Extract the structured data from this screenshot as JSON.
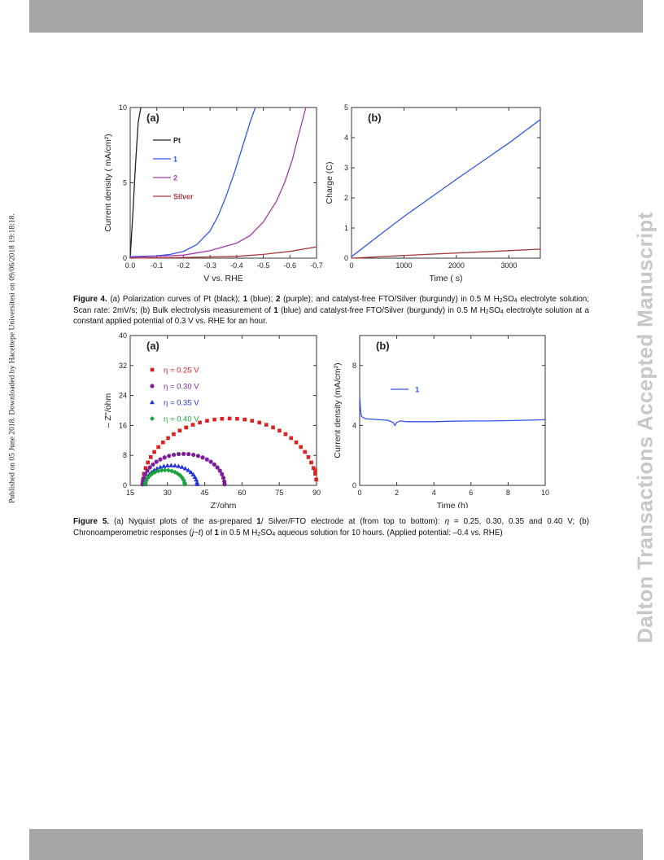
{
  "side_text_left": "Published on 05 June 2018. Downloaded by Hacettepe Universitesi on 09/06/2018 19:18:18.",
  "watermark": "Dalton Transactions Accepted Manuscript",
  "colors": {
    "black": "#222222",
    "blue": "#3355ee",
    "purple": "#a23aa8",
    "burgundy": "#a83a3a",
    "red": "#e02020",
    "violet": "#7a1e9a",
    "green": "#1aa33a"
  },
  "figure4": {
    "caption": {
      "label": "Figure 4.",
      "p1": " (a) Polarization curves of Pt (black); ",
      "c1": "1",
      "p2": " (blue); ",
      "c2": "2",
      "p3": " (purple); and catalyst-free FTO/Silver (burgundy) in 0.5 M H",
      "s1": "2",
      "p4": "SO",
      "s2": "4",
      "p5": " electrolyte solution; Scan rate: 2mV/s; (b) Bulk electrolysis measurement of ",
      "c3": "1",
      "p6": " (blue) and catalyst-free FTO/Silver (burgundy) in 0.5 M H",
      "s3": "2",
      "p7": "SO",
      "s4": "4",
      "p8": " electrolyte solution at a constant applied potential of 0.3 V vs. RHE for an hour."
    }
  },
  "figure5": {
    "caption": {
      "label": "Figure 5.",
      "p1": " (a) Nyquist plots of the as-prepared ",
      "c1": "1",
      "p2": "/ Silver/FTO electrode at (from top to bottom): ",
      "eta": "η",
      "p3": " = 0.25, 0.30, 0.35 and 0.40 V; (b) Chronoamperometric responses (",
      "j": "j",
      "tilde": "~",
      "t": "t",
      "p4": ") of ",
      "c2": "1",
      "p5": " in 0.5 M H",
      "s1": "2",
      "p6": "SO",
      "s2": "4",
      "p7": " aqueous solution for 10 hours. (Applied potential: –0.4 vs. RHE)"
    }
  },
  "chart_data": [
    {
      "id": "fig4a",
      "type": "line",
      "panel_label": "(a)",
      "xlabel": "V vs. RHE",
      "ylabel": "Current density ( mA/cm²)",
      "xlim": [
        0.0,
        -0.7
      ],
      "ylim": [
        0,
        10
      ],
      "xticks": [
        0.0,
        -0.1,
        -0.2,
        -0.3,
        -0.4,
        -0.5,
        -0.6,
        -0.7
      ],
      "xtick_labels": [
        "0.0",
        "-0.1",
        "-0.2",
        "-0.3",
        "-0.4",
        "-0.5",
        "-0.6",
        "-0.7"
      ],
      "yticks": [
        0,
        5,
        10
      ],
      "ytick_labels": [
        "0",
        "5",
        "10"
      ],
      "legend_position": "top-left",
      "series": [
        {
          "name": "Pt",
          "color": "#222222",
          "x": [
            0,
            -0.01,
            -0.02,
            -0.03,
            -0.04
          ],
          "y": [
            0,
            3.0,
            6.2,
            9.0,
            10
          ]
        },
        {
          "name": "1",
          "color": "#3355ee",
          "x": [
            0,
            -0.1,
            -0.15,
            -0.2,
            -0.25,
            -0.3,
            -0.33,
            -0.36,
            -0.39,
            -0.42,
            -0.45,
            -0.47
          ],
          "y": [
            0.1,
            0.15,
            0.25,
            0.45,
            0.9,
            1.8,
            2.8,
            4.1,
            5.6,
            7.3,
            9.0,
            10
          ]
        },
        {
          "name": "2",
          "color": "#a23aa8",
          "x": [
            0,
            -0.2,
            -0.3,
            -0.4,
            -0.45,
            -0.5,
            -0.55,
            -0.58,
            -0.61,
            -0.63,
            -0.66
          ],
          "y": [
            0.05,
            0.2,
            0.5,
            1.0,
            1.5,
            2.4,
            3.8,
            5.0,
            6.6,
            8.0,
            10
          ]
        },
        {
          "name": "Silver",
          "color": "#a83a3a",
          "x": [
            0,
            -0.2,
            -0.4,
            -0.5,
            -0.6,
            -0.7
          ],
          "y": [
            0,
            0.05,
            0.12,
            0.25,
            0.45,
            0.75
          ]
        }
      ]
    },
    {
      "id": "fig4b",
      "type": "line",
      "panel_label": "(b)",
      "xlabel": "Time ( s)",
      "ylabel": "Charge (C)",
      "xlim": [
        0,
        3600
      ],
      "ylim": [
        0,
        5
      ],
      "xticks": [
        0,
        1000,
        2000,
        3000
      ],
      "xtick_labels": [
        "0",
        "1000",
        "2000",
        "3000"
      ],
      "yticks": [
        0,
        1,
        2,
        3,
        4,
        5
      ],
      "ytick_labels": [
        "0",
        "1",
        "2",
        "3",
        "4",
        "5"
      ],
      "series": [
        {
          "color": "#3355ee",
          "x": [
            0,
            500,
            1000,
            1500,
            2000,
            2500,
            3000,
            3600
          ],
          "y": [
            0.05,
            0.72,
            1.38,
            2.0,
            2.62,
            3.22,
            3.82,
            4.6
          ]
        },
        {
          "color": "#a83a3a",
          "x": [
            0,
            1000,
            2000,
            3000,
            3600
          ],
          "y": [
            0,
            0.09,
            0.17,
            0.25,
            0.3
          ]
        }
      ]
    },
    {
      "id": "fig5a",
      "type": "scatter",
      "panel_label": "(a)",
      "xlabel": "Z'/ohm",
      "ylabel": "– Z''/ohm",
      "xlim": [
        15,
        90
      ],
      "ylim": [
        0,
        40
      ],
      "xticks": [
        15,
        30,
        45,
        60,
        75,
        90
      ],
      "xtick_labels": [
        "15",
        "30",
        "45",
        "60",
        "75",
        "90"
      ],
      "yticks": [
        0,
        8,
        16,
        24,
        32,
        40
      ],
      "ytick_labels": [
        "0",
        "8",
        "16",
        "24",
        "32",
        "40"
      ],
      "legend_position": "top-left",
      "series": [
        {
          "name": "η = 0.25 V",
          "marker": "square",
          "color": "#e02020",
          "center": 55,
          "radius": 35,
          "count": 36,
          "end_x": 89.5,
          "end_y": 4
        },
        {
          "name": "η = 0.30 V",
          "marker": "circle",
          "color": "#7a1e9a",
          "center": 36.5,
          "radius": 16.5,
          "count": 26
        },
        {
          "name": "η = 0.35 V",
          "marker": "triangle",
          "color": "#2233dd",
          "center": 31.5,
          "radius": 10.5,
          "count": 22
        },
        {
          "name": "η = 0.40 V",
          "marker": "diamond",
          "color": "#1aa33a",
          "center": 29,
          "radius": 8,
          "count": 18
        }
      ]
    },
    {
      "id": "fig5b",
      "type": "line",
      "panel_label": "(b)",
      "xlabel": "Time (h)",
      "ylabel": "Current density (mA/cm²)",
      "xlim": [
        0,
        10
      ],
      "ylim": [
        0,
        10
      ],
      "xticks": [
        0,
        2,
        4,
        6,
        8,
        10
      ],
      "xtick_labels": [
        "0",
        "2",
        "4",
        "6",
        "8",
        "10"
      ],
      "yticks": [
        0,
        4,
        8
      ],
      "ytick_labels": [
        "0",
        "4",
        "8"
      ],
      "legend_position": "top-left",
      "series": [
        {
          "name": "1",
          "color": "#3355ee",
          "x": [
            0,
            0.05,
            0.1,
            0.3,
            0.8,
            1.5,
            1.8,
            1.9,
            2.0,
            2.2,
            2.5,
            3,
            4,
            5,
            6,
            7,
            8,
            9,
            10
          ],
          "y": [
            6.0,
            5.0,
            4.6,
            4.45,
            4.4,
            4.35,
            4.2,
            4.0,
            4.2,
            4.3,
            4.25,
            4.25,
            4.25,
            4.28,
            4.3,
            4.3,
            4.32,
            4.35,
            4.38
          ]
        }
      ]
    }
  ]
}
